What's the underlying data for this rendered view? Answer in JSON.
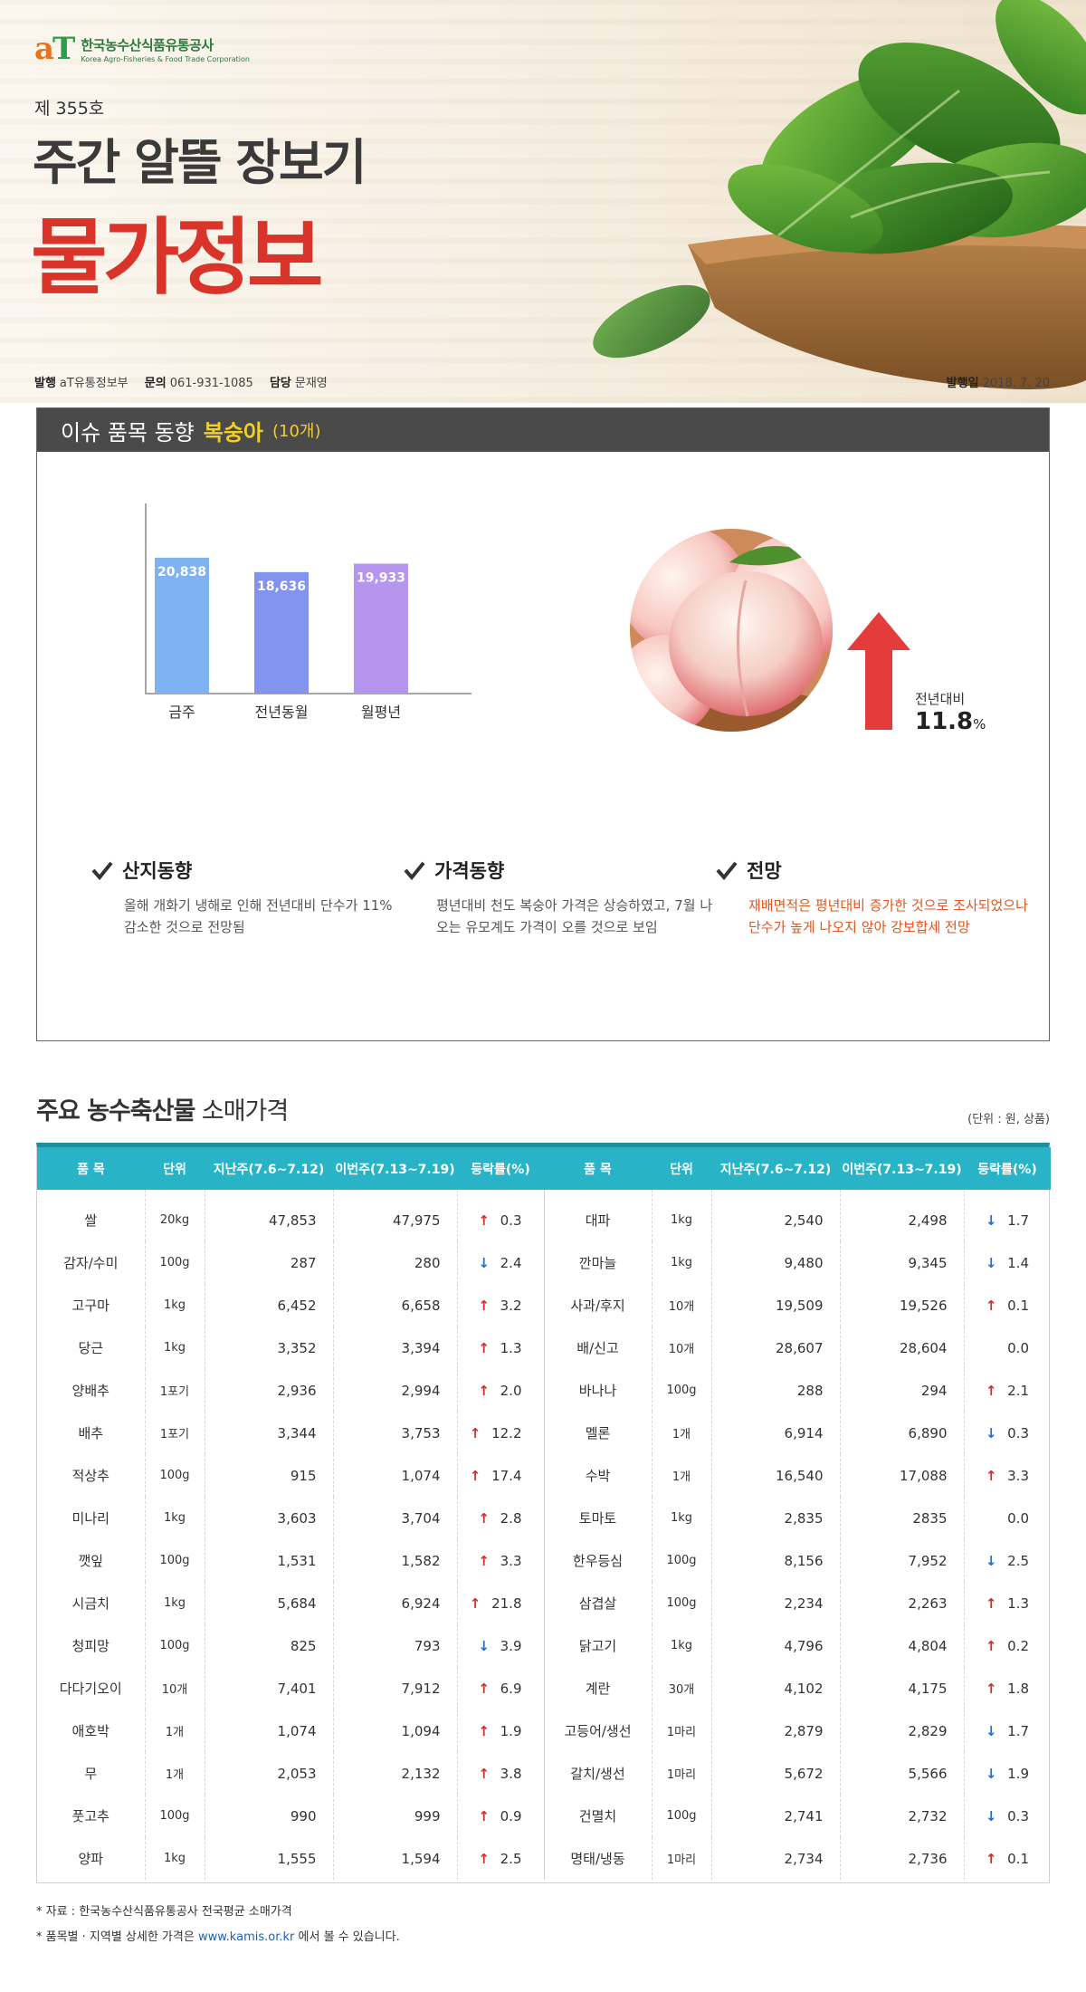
{
  "header": {
    "logo_mark_a": "a",
    "logo_mark_t": "T",
    "logo_kr": "한국농수산식품유통공사",
    "logo_en": "Korea Agro-Fisheries & Food Trade Corporation",
    "issue_no": "제 355호",
    "title_line1": "주간 알뜰 장보기",
    "title_line2": "물가정보",
    "publisher_label": "발행",
    "publisher": "aT유통정보부",
    "contact_label": "문의",
    "contact": "061-931-1085",
    "manager_label": "담당",
    "manager": "문재영",
    "date_label": "발행일",
    "date": "2018. 7. 20"
  },
  "issue": {
    "heading": "이슈 품목 동향",
    "item": "복숭아",
    "unit_count": "(10개)",
    "chart_data": {
      "type": "bar",
      "categories": [
        "금주",
        "전년동월",
        "월평년"
      ],
      "values": [
        20838,
        18636,
        19933
      ],
      "value_labels": [
        "20,838",
        "18,636",
        "19,933"
      ],
      "colors": [
        "#7fb2f0",
        "#8394ee",
        "#b595ee"
      ],
      "ylim": [
        0,
        25000
      ]
    },
    "yoy_label": "전년대비",
    "yoy_value": "11.8",
    "yoy_unit": "%",
    "trends": [
      {
        "title": "산지동향",
        "text": "올해 개화기 냉해로 인해 전년대비 단수가 11% 감소한 것으로 전망됨"
      },
      {
        "title": "가격동향",
        "text": "평년대비 천도 복숭아 가격은 상승하였고, 7월 나오는 유모계도 가격이 오를 것으로 보임"
      },
      {
        "title": "전망",
        "text": "재배면적은 평년대비 증가한 것으로 조사되었으나 단수가 높게 나오지 않아 강보합세 전망"
      }
    ]
  },
  "prices": {
    "title_bold": "주요 농수축산물",
    "title_rest": "소매가격",
    "unit_note": "(단위 : 원, 상품)",
    "columns": [
      "품 목",
      "단위",
      "지난주(7.6~7.12)",
      "이번주(7.13~7.19)",
      "등락률(%)",
      "품 목",
      "단위",
      "지난주(7.6~7.12)",
      "이번주(7.13~7.19)",
      "등락률(%)"
    ],
    "rows": [
      {
        "l": {
          "item": "쌀",
          "unit": "20kg",
          "prev": "47,853",
          "cur": "47,975",
          "dir": "up",
          "rate": "0.3"
        },
        "r": {
          "item": "대파",
          "unit": "1kg",
          "prev": "2,540",
          "cur": "2,498",
          "dir": "down",
          "rate": "1.7"
        }
      },
      {
        "l": {
          "item": "감자/수미",
          "unit": "100g",
          "prev": "287",
          "cur": "280",
          "dir": "down",
          "rate": "2.4"
        },
        "r": {
          "item": "깐마늘",
          "unit": "1kg",
          "prev": "9,480",
          "cur": "9,345",
          "dir": "down",
          "rate": "1.4"
        }
      },
      {
        "l": {
          "item": "고구마",
          "unit": "1kg",
          "prev": "6,452",
          "cur": "6,658",
          "dir": "up",
          "rate": "3.2"
        },
        "r": {
          "item": "사과/후지",
          "unit": "10개",
          "prev": "19,509",
          "cur": "19,526",
          "dir": "up",
          "rate": "0.1"
        }
      },
      {
        "l": {
          "item": "당근",
          "unit": "1kg",
          "prev": "3,352",
          "cur": "3,394",
          "dir": "up",
          "rate": "1.3"
        },
        "r": {
          "item": "배/신고",
          "unit": "10개",
          "prev": "28,607",
          "cur": "28,604",
          "dir": "none",
          "rate": "0.0"
        }
      },
      {
        "l": {
          "item": "양배추",
          "unit": "1포기",
          "prev": "2,936",
          "cur": "2,994",
          "dir": "up",
          "rate": "2.0"
        },
        "r": {
          "item": "바나나",
          "unit": "100g",
          "prev": "288",
          "cur": "294",
          "dir": "up",
          "rate": "2.1"
        }
      },
      {
        "l": {
          "item": "배추",
          "unit": "1포기",
          "prev": "3,344",
          "cur": "3,753",
          "dir": "up",
          "rate": "12.2"
        },
        "r": {
          "item": "멜론",
          "unit": "1개",
          "prev": "6,914",
          "cur": "6,890",
          "dir": "down",
          "rate": "0.3"
        }
      },
      {
        "l": {
          "item": "적상추",
          "unit": "100g",
          "prev": "915",
          "cur": "1,074",
          "dir": "up",
          "rate": "17.4"
        },
        "r": {
          "item": "수박",
          "unit": "1개",
          "prev": "16,540",
          "cur": "17,088",
          "dir": "up",
          "rate": "3.3"
        }
      },
      {
        "l": {
          "item": "미나리",
          "unit": "1kg",
          "prev": "3,603",
          "cur": "3,704",
          "dir": "up",
          "rate": "2.8"
        },
        "r": {
          "item": "토마토",
          "unit": "1kg",
          "prev": "2,835",
          "cur": "2835",
          "dir": "none",
          "rate": "0.0"
        }
      },
      {
        "l": {
          "item": "깻잎",
          "unit": "100g",
          "prev": "1,531",
          "cur": "1,582",
          "dir": "up",
          "rate": "3.3"
        },
        "r": {
          "item": "한우등심",
          "unit": "100g",
          "prev": "8,156",
          "cur": "7,952",
          "dir": "down",
          "rate": "2.5"
        }
      },
      {
        "l": {
          "item": "시금치",
          "unit": "1kg",
          "prev": "5,684",
          "cur": "6,924",
          "dir": "up",
          "rate": "21.8"
        },
        "r": {
          "item": "삼겹살",
          "unit": "100g",
          "prev": "2,234",
          "cur": "2,263",
          "dir": "up",
          "rate": "1.3"
        }
      },
      {
        "l": {
          "item": "청피망",
          "unit": "100g",
          "prev": "825",
          "cur": "793",
          "dir": "down",
          "rate": "3.9"
        },
        "r": {
          "item": "닭고기",
          "unit": "1kg",
          "prev": "4,796",
          "cur": "4,804",
          "dir": "up",
          "rate": "0.2"
        }
      },
      {
        "l": {
          "item": "다다기오이",
          "unit": "10개",
          "prev": "7,401",
          "cur": "7,912",
          "dir": "up",
          "rate": "6.9"
        },
        "r": {
          "item": "계란",
          "unit": "30개",
          "prev": "4,102",
          "cur": "4,175",
          "dir": "up",
          "rate": "1.8"
        }
      },
      {
        "l": {
          "item": "애호박",
          "unit": "1개",
          "prev": "1,074",
          "cur": "1,094",
          "dir": "up",
          "rate": "1.9"
        },
        "r": {
          "item": "고등어/생선",
          "unit": "1마리",
          "prev": "2,879",
          "cur": "2,829",
          "dir": "down",
          "rate": "1.7"
        }
      },
      {
        "l": {
          "item": "무",
          "unit": "1개",
          "prev": "2,053",
          "cur": "2,132",
          "dir": "up",
          "rate": "3.8"
        },
        "r": {
          "item": "갈치/생선",
          "unit": "1마리",
          "prev": "5,672",
          "cur": "5,566",
          "dir": "down",
          "rate": "1.9"
        }
      },
      {
        "l": {
          "item": "풋고추",
          "unit": "100g",
          "prev": "990",
          "cur": "999",
          "dir": "up",
          "rate": "0.9"
        },
        "r": {
          "item": "건멸치",
          "unit": "100g",
          "prev": "2,741",
          "cur": "2,732",
          "dir": "down",
          "rate": "0.3"
        }
      },
      {
        "l": {
          "item": "양파",
          "unit": "1kg",
          "prev": "1,555",
          "cur": "1,594",
          "dir": "up",
          "rate": "2.5"
        },
        "r": {
          "item": "명태/냉동",
          "unit": "1마리",
          "prev": "2,734",
          "cur": "2,736",
          "dir": "up",
          "rate": "0.1"
        }
      }
    ]
  },
  "footer": {
    "note1": "* 자료 : 한국농수산식품유통공사 전국평균 소매가격",
    "note2_pre": "* 품목별 · 지역별 상세한 가격은",
    "note2_link": "www.kamis.or.kr",
    "note2_post": "에서 볼 수 있습니다."
  }
}
